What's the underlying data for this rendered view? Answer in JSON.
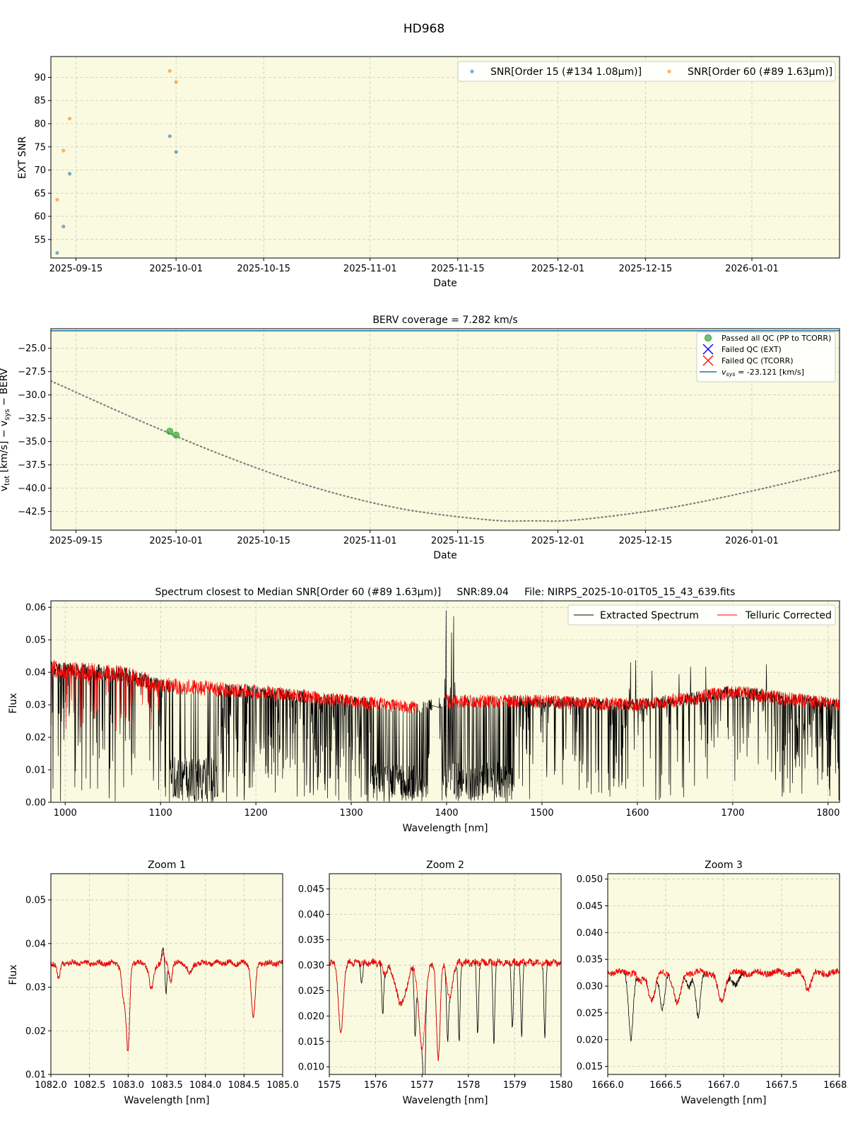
{
  "figure_title": "HD968",
  "colors": {
    "plot_bg": "#fafae0",
    "order15": "#1f77b4",
    "order60": "#ff7f0e",
    "passed": "#2ca02c",
    "failed_ext": "#0000ff",
    "failed_tcorr": "#ff0000",
    "vsys_line": "#1f77b4",
    "extracted": "#000000",
    "telluric": "#ff0000",
    "berv_curve": "#808080"
  },
  "chart_data": [
    {
      "id": "snr",
      "type": "scatter",
      "title": "",
      "xlabel": "Date",
      "ylabel": "EXT SNR",
      "x_is_date": true,
      "xlim": [
        "2025-09-11",
        "2026-01-15"
      ],
      "ylim": [
        51,
        94.5
      ],
      "xticks": [
        "2025-09-15",
        "2025-10-01",
        "2025-10-15",
        "2025-11-01",
        "2025-11-15",
        "2025-12-01",
        "2025-12-15",
        "2026-01-01"
      ],
      "yticks": [
        55,
        60,
        65,
        70,
        75,
        80,
        85,
        90
      ],
      "grid": true,
      "legend_position": "top-right",
      "series": [
        {
          "name": "SNR[Order 15 (#134 1.08μm)]",
          "color": "#1f77b4",
          "points": [
            [
              "2025-09-12",
              52.1
            ],
            [
              "2025-09-13",
              57.8
            ],
            [
              "2025-09-14",
              69.2
            ],
            [
              "2025-09-30",
              77.3
            ],
            [
              "2025-10-01",
              73.9
            ]
          ]
        },
        {
          "name": "SNR[Order 60 (#89 1.63μm)]",
          "color": "#ff7f0e",
          "points": [
            [
              "2025-09-12",
              63.6
            ],
            [
              "2025-09-13",
              74.2
            ],
            [
              "2025-09-14",
              81.1
            ],
            [
              "2025-09-30",
              91.4
            ],
            [
              "2025-10-01",
              89.0
            ]
          ]
        }
      ]
    },
    {
      "id": "berv",
      "type": "scatter",
      "title": "BERV coverage = 7.282 km/s",
      "xlabel": "Date",
      "ylabel": "v_tot [km/s] − v_sys − BERV",
      "x_is_date": true,
      "xlim": [
        "2025-09-11",
        "2026-01-15"
      ],
      "ylim": [
        -44.5,
        -22.9
      ],
      "xticks": [
        "2025-09-15",
        "2025-10-01",
        "2025-10-15",
        "2025-11-01",
        "2025-11-15",
        "2025-12-01",
        "2025-12-15",
        "2026-01-01"
      ],
      "yticks": [
        -25.0,
        -27.5,
        -30.0,
        -32.5,
        -35.0,
        -37.5,
        -40.0,
        -42.5
      ],
      "ytick_labels": [
        "−25.0",
        "−27.5",
        "−30.0",
        "−32.5",
        "−35.0",
        "−37.5",
        "−40.0",
        "−42.5"
      ],
      "grid": true,
      "legend_position": "top-right",
      "legend": [
        "Passed all QC (PP to TCORR)",
        "Failed QC (EXT)",
        "Failed QC (TCORR)",
        "= -23.121 [km/s]"
      ],
      "vsys": -23.121,
      "curve": [
        [
          "2025-09-11",
          -28.5
        ],
        [
          "2025-09-25",
          -32.7
        ],
        [
          "2025-10-09",
          -36.6
        ],
        [
          "2025-10-23",
          -39.9
        ],
        [
          "2025-11-06",
          -42.2
        ],
        [
          "2025-11-20",
          -43.4
        ],
        [
          "2025-11-27",
          -43.5
        ],
        [
          "2025-12-04",
          -43.4
        ],
        [
          "2025-12-18",
          -42.2
        ],
        [
          "2026-01-01",
          -40.3
        ],
        [
          "2026-01-15",
          -38.1
        ]
      ],
      "passed_points": [
        [
          "2025-09-30",
          -33.9
        ],
        [
          "2025-10-01",
          -34.3
        ]
      ]
    },
    {
      "id": "spectrum",
      "type": "line",
      "title": "Spectrum closest to Median SNR[Order 60 (#89 1.63μm)]     SNR:89.04     File: NIRPS_2025-10-01T05_15_43_639.fits",
      "xlabel": "Wavelength [nm]",
      "ylabel": "Flux",
      "xlim": [
        985,
        1812
      ],
      "ylim": [
        0.0,
        0.062
      ],
      "xticks": [
        1000,
        1100,
        1200,
        1300,
        1400,
        1500,
        1600,
        1700,
        1800
      ],
      "yticks": [
        0.0,
        0.01,
        0.02,
        0.03,
        0.04,
        0.05,
        0.06
      ],
      "ytick_labels": [
        "0.00",
        "0.01",
        "0.02",
        "0.03",
        "0.04",
        "0.05",
        "0.06"
      ],
      "grid": true,
      "legend_position": "top-right",
      "series_names": [
        "Extracted Spectrum",
        "Telluric Corrected"
      ],
      "continuum": [
        [
          985,
          0.041
        ],
        [
          1060,
          0.0395
        ],
        [
          1100,
          0.036
        ],
        [
          1200,
          0.034
        ],
        [
          1300,
          0.031
        ],
        [
          1370,
          0.029
        ],
        [
          1400,
          0.031
        ],
        [
          1500,
          0.031
        ],
        [
          1600,
          0.03
        ],
        [
          1660,
          0.032
        ],
        [
          1700,
          0.034
        ],
        [
          1812,
          0.03
        ]
      ],
      "gap_nm": [
        1380,
        1395
      ]
    },
    {
      "id": "zoom1",
      "type": "line",
      "title": "Zoom 1",
      "xlabel": "Wavelength [nm]",
      "ylabel": "Flux",
      "xlim": [
        1082.0,
        1085.0
      ],
      "ylim": [
        0.01,
        0.056
      ],
      "xticks": [
        1082.0,
        1082.5,
        1083.0,
        1083.5,
        1084.0,
        1084.5,
        1085.0
      ],
      "yticks": [
        0.01,
        0.02,
        0.03,
        0.04,
        0.05
      ],
      "base": 0.0355,
      "lines": [
        [
          1082.1,
          0.0035,
          0.02
        ],
        [
          1082.95,
          0.009,
          0.03
        ],
        [
          1083.0,
          0.018,
          0.02
        ],
        [
          1083.3,
          0.006,
          0.03
        ],
        [
          1083.55,
          0.004,
          0.02
        ],
        [
          1083.8,
          0.0025,
          0.03
        ],
        [
          1084.62,
          0.0125,
          0.025
        ]
      ],
      "extracted_only": [
        [
          1083.49,
          0.007,
          0.012
        ]
      ],
      "emissions": [
        [
          1083.45,
          0.003,
          0.015
        ]
      ]
    },
    {
      "id": "zoom2",
      "type": "line",
      "title": "Zoom 2",
      "xlabel": "Wavelength [nm]",
      "ylabel": "",
      "xlim": [
        1575.0,
        1580.0
      ],
      "ylim": [
        0.0085,
        0.048
      ],
      "xticks": [
        1575,
        1576,
        1577,
        1578,
        1579,
        1580
      ],
      "yticks": [
        0.01,
        0.015,
        0.02,
        0.025,
        0.03,
        0.035,
        0.04,
        0.045
      ],
      "ytick_labels": [
        "0.010",
        "0.015",
        "0.020",
        "0.025",
        "0.030",
        "0.035",
        "0.040",
        "0.045"
      ],
      "base": 0.0305,
      "lines": [
        [
          1575.25,
          0.014,
          0.05
        ],
        [
          1576.55,
          0.008,
          0.12
        ],
        [
          1577.0,
          0.017,
          0.07
        ],
        [
          1577.35,
          0.019,
          0.04
        ],
        [
          1577.6,
          0.007,
          0.06
        ],
        [
          1576.2,
          0.002,
          0.05
        ]
      ],
      "extracted_only": [
        [
          1575.7,
          0.004,
          0.02
        ],
        [
          1576.15,
          0.009,
          0.02
        ],
        [
          1576.85,
          0.012,
          0.02
        ],
        [
          1577.05,
          0.017,
          0.02
        ],
        [
          1577.55,
          0.01,
          0.02
        ],
        [
          1577.8,
          0.016,
          0.02
        ],
        [
          1578.2,
          0.014,
          0.02
        ],
        [
          1578.55,
          0.0155,
          0.02
        ],
        [
          1578.95,
          0.013,
          0.02
        ],
        [
          1579.15,
          0.0145,
          0.02
        ],
        [
          1579.65,
          0.0145,
          0.02
        ]
      ]
    },
    {
      "id": "zoom3",
      "type": "line",
      "title": "Zoom 3",
      "xlabel": "Wavelength [nm]",
      "ylabel": "",
      "xlim": [
        1666.0,
        1668.0
      ],
      "ylim": [
        0.0135,
        0.051
      ],
      "xticks": [
        1666.0,
        1666.5,
        1667.0,
        1667.5,
        1668.0
      ],
      "yticks": [
        0.015,
        0.02,
        0.025,
        0.03,
        0.035,
        0.04,
        0.045,
        0.05
      ],
      "ytick_labels": [
        "0.015",
        "0.020",
        "0.025",
        "0.030",
        "0.035",
        "0.040",
        "0.045",
        "0.050"
      ],
      "base": 0.0325,
      "lines": [
        [
          1666.38,
          0.005,
          0.03
        ],
        [
          1666.6,
          0.006,
          0.03
        ],
        [
          1666.98,
          0.0055,
          0.03
        ],
        [
          1667.73,
          0.003,
          0.025
        ],
        [
          1666.28,
          0.002,
          0.02
        ]
      ],
      "extracted_only": [
        [
          1666.2,
          0.012,
          0.02
        ],
        [
          1666.47,
          0.007,
          0.02
        ],
        [
          1666.78,
          0.0085,
          0.02
        ],
        [
          1667.1,
          0.0025,
          0.03
        ],
        [
          1666.7,
          0.0025,
          0.02
        ]
      ]
    }
  ]
}
